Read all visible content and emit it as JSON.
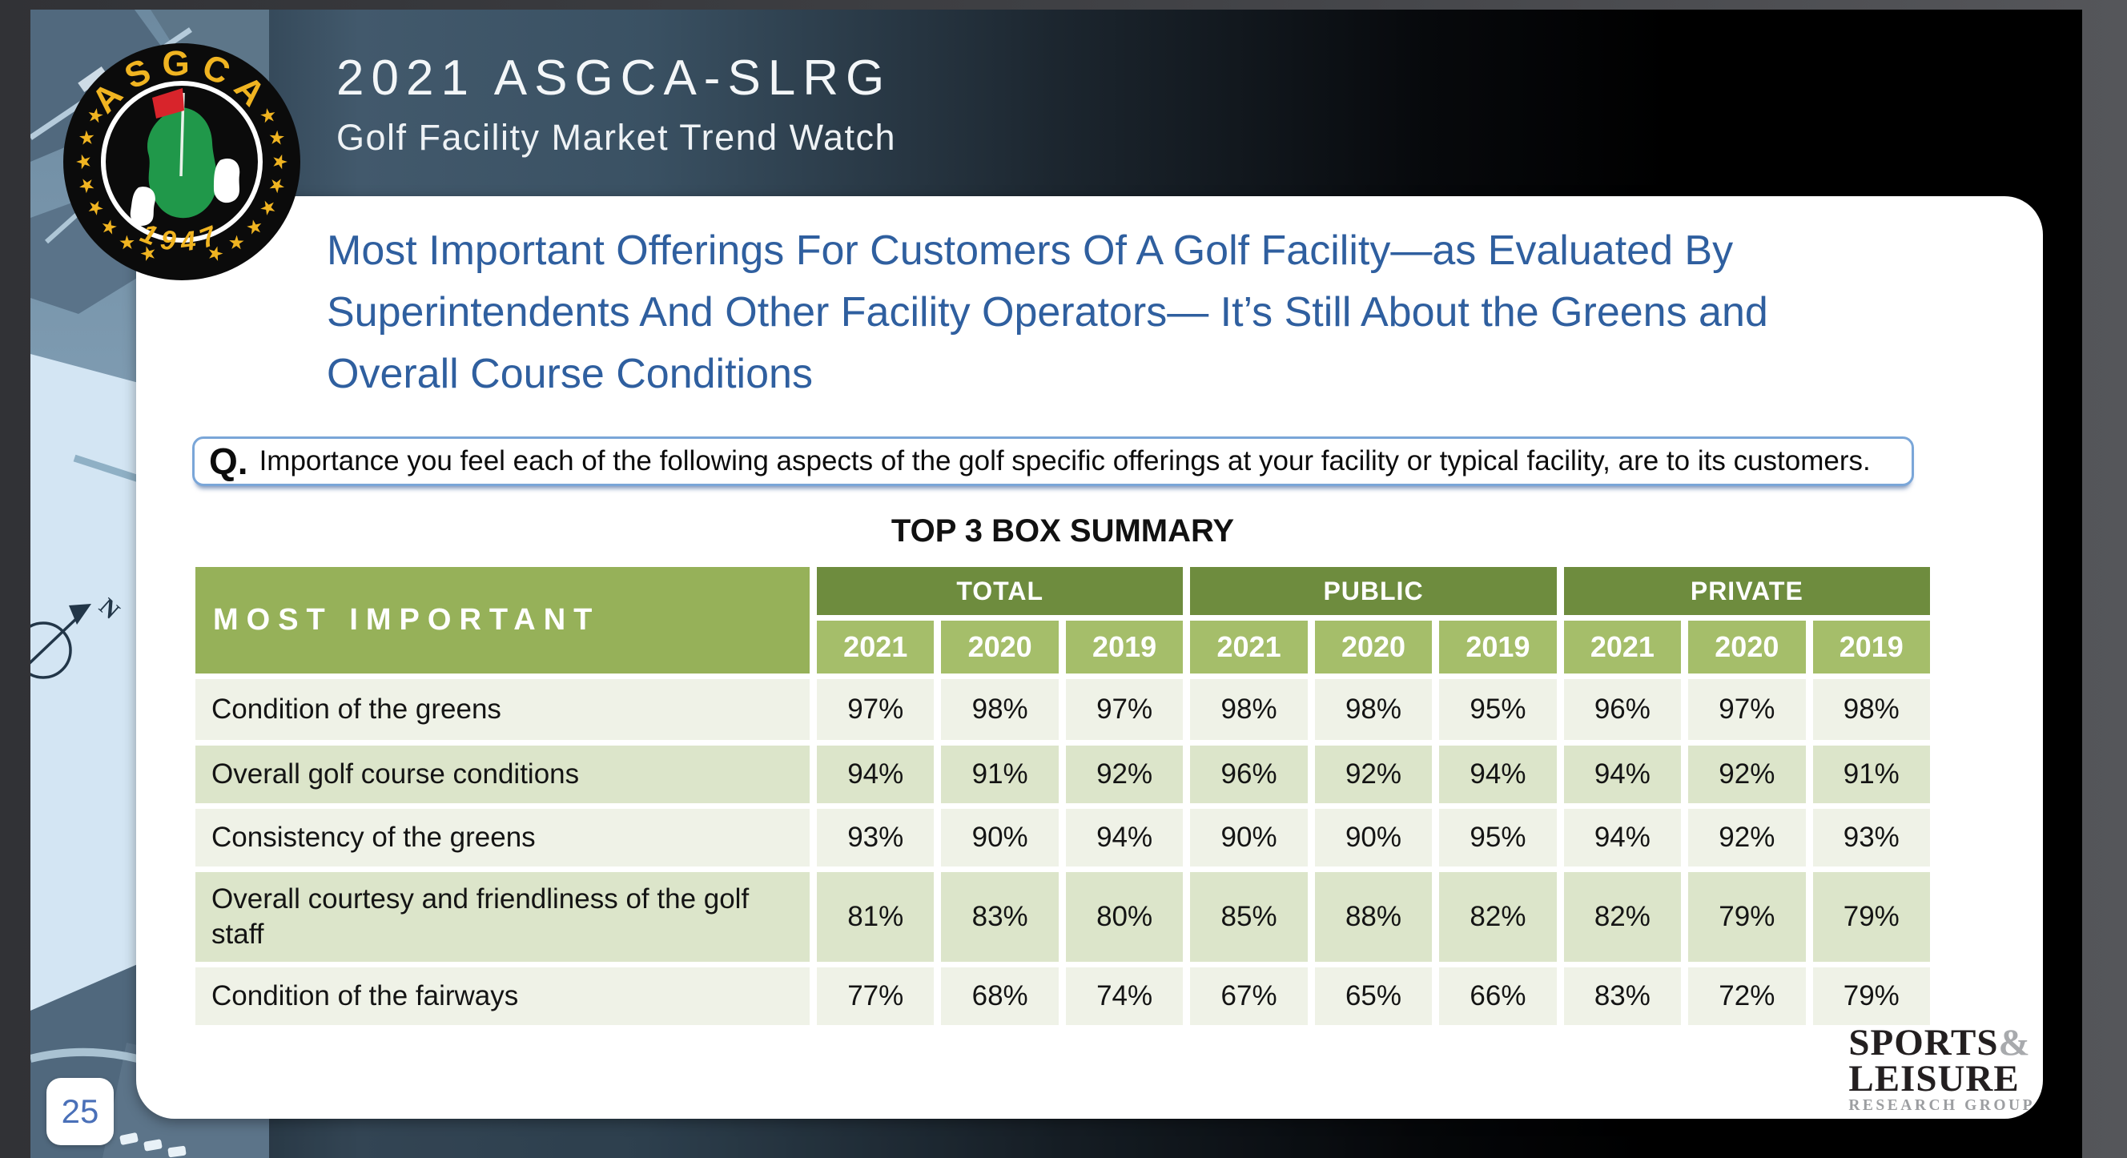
{
  "header": {
    "title": "2021 ASGCA-SLRG",
    "subtitle": "Golf Facility Market Trend Watch"
  },
  "logo": {
    "org": "ASGCA",
    "year": "1947",
    "star": "★",
    "colors": {
      "gold": "#f0b421",
      "green": "#20984a",
      "flag_red": "#d8242b"
    }
  },
  "map": {
    "compass_label": "N"
  },
  "slide": {
    "heading_lines": [
      "Most Important Offerings For Customers Of A Golf Facility—as Evaluated By",
      "Superintendents And Other Facility Operators— It’s Still About the Greens and",
      "Overall Course Conditions"
    ],
    "question_prefix": "Q.",
    "question": "Importance you feel each of the following aspects of the golf specific offerings at your facility or typical facility, are to its customers.",
    "table_title": "TOP 3 BOX SUMMARY",
    "page_number": "25"
  },
  "table": {
    "row_header": "MOST IMPORTANT",
    "groups": [
      "TOTAL",
      "PUBLIC",
      "PRIVATE"
    ],
    "years": [
      "2021",
      "2020",
      "2019"
    ],
    "rows": [
      {
        "label": "Condition of the greens",
        "values": [
          "97%",
          "98%",
          "97%",
          "98%",
          "98%",
          "95%",
          "96%",
          "97%",
          "98%"
        ]
      },
      {
        "label": "Overall golf course conditions",
        "values": [
          "94%",
          "91%",
          "92%",
          "96%",
          "92%",
          "94%",
          "94%",
          "92%",
          "91%"
        ]
      },
      {
        "label": "Consistency of the greens",
        "values": [
          "93%",
          "90%",
          "94%",
          "90%",
          "90%",
          "95%",
          "94%",
          "92%",
          "93%"
        ]
      },
      {
        "label": "Overall courtesy and friendliness of the golf staff",
        "values": [
          "81%",
          "83%",
          "80%",
          "85%",
          "88%",
          "82%",
          "82%",
          "79%",
          "79%"
        ]
      },
      {
        "label": "Condition of the fairways",
        "values": [
          "77%",
          "68%",
          "74%",
          "67%",
          "65%",
          "66%",
          "83%",
          "72%",
          "79%"
        ]
      }
    ]
  },
  "footer_logo": {
    "line1_black": "SPORTS",
    "line1_gray": "&",
    "line2": "LEISURE",
    "line3": "RESEARCH GROUP"
  },
  "colors": {
    "heading_blue": "#2f5f9f",
    "question_border_blue": "#7aa6d8",
    "table_header_green": "#96b159",
    "table_group_green": "#6e8c3e",
    "table_year_green": "#a5be6a",
    "row_light": "#eff2e7",
    "row_green": "#dce5ca",
    "page_number_blue": "#4a70b8"
  }
}
